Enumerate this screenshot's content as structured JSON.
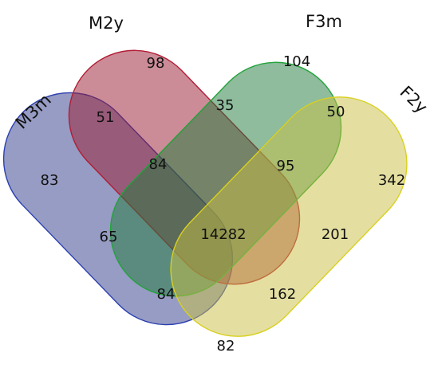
{
  "sets": [
    {
      "id": "m3m",
      "name": "M3m",
      "fill": "#2e3a87",
      "stroke": "#2c3fb0"
    },
    {
      "id": "m2y",
      "name": "M2y",
      "fill": "#9a1a30",
      "stroke": "#b21d35"
    },
    {
      "id": "f3m",
      "name": "F3m",
      "fill": "#1e7a3a",
      "stroke": "#22a33a"
    },
    {
      "id": "f2y",
      "name": "F2y",
      "fill": "#c9c043",
      "stroke": "#d8d020"
    }
  ],
  "regions": [
    {
      "id": "m2y-only",
      "value": "98"
    },
    {
      "id": "f3m-only",
      "value": "104"
    },
    {
      "id": "m3m-m2y",
      "value": "51"
    },
    {
      "id": "m2y-f3m",
      "value": "35"
    },
    {
      "id": "f3m-f2y",
      "value": "50"
    },
    {
      "id": "m3m-only",
      "value": "83"
    },
    {
      "id": "m3m-m2y-f3m",
      "value": "84"
    },
    {
      "id": "m2y-f3m-f2y",
      "value": "95"
    },
    {
      "id": "f2y-only",
      "value": "342"
    },
    {
      "id": "m3m-f3m",
      "value": "65"
    },
    {
      "id": "all-four",
      "value": "14282"
    },
    {
      "id": "m2y-f2y",
      "value": "201"
    },
    {
      "id": "m3m-f3m-f2y",
      "value": "84"
    },
    {
      "id": "m3m-m2y-f2y",
      "value": "162"
    },
    {
      "id": "m3m-f2y",
      "value": "82"
    }
  ]
}
